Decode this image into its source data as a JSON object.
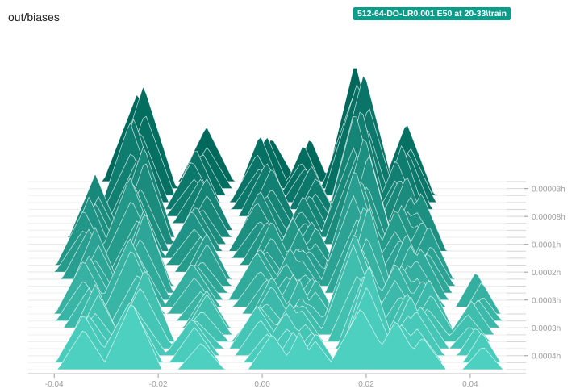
{
  "panel": {
    "title": "out/biases",
    "run_label": "512-64-DO-LR0.001 E50 at 20-33\\train"
  },
  "chart_data": {
    "type": "histogram-offset",
    "title": "out/biases",
    "xlim": [
      -0.045,
      0.047
    ],
    "x_ticks": [
      "-0.04",
      "-0.02",
      "0.00",
      "0.02",
      "0.04"
    ],
    "x_tick_values": [
      -0.04,
      -0.02,
      0.0,
      0.02,
      0.04
    ],
    "y_ticks": [
      "0.00003h",
      "0.00008h",
      "0.0001h",
      "0.0002h",
      "0.0003h",
      "0.0003h",
      "0.0004h"
    ],
    "y_tick_steps": [
      1,
      5,
      9,
      13,
      17,
      21,
      25
    ],
    "step_count": 28,
    "series": [
      {
        "peak_x": -0.024,
        "width": 0.006,
        "first_step": 0,
        "height": 1.0
      },
      {
        "peak_x": -0.012,
        "width": 0.005,
        "first_step": 0,
        "height": 0.55
      },
      {
        "peak_x": 0.0005,
        "width": 0.005,
        "first_step": 0,
        "height": 0.6
      },
      {
        "peak_x": 0.009,
        "width": 0.004,
        "first_step": 0,
        "height": 0.45
      },
      {
        "peak_x": 0.019,
        "width": 0.006,
        "first_step": 0,
        "height": 1.3
      },
      {
        "peak_x": 0.027,
        "width": 0.005,
        "first_step": 2,
        "height": 0.75
      },
      {
        "peak_x": -0.033,
        "width": 0.005,
        "first_step": 8,
        "height": 0.7
      },
      {
        "peak_x": 0.031,
        "width": 0.005,
        "first_step": 10,
        "height": 0.65
      },
      {
        "peak_x": 0.006,
        "width": 0.004,
        "first_step": 12,
        "height": 0.55
      },
      {
        "peak_x": 0.041,
        "width": 0.004,
        "first_step": 18,
        "height": 0.45
      }
    ],
    "colors": {
      "oldest": "#00695c",
      "newest": "#4dd0c0",
      "outline": "#ffffff",
      "grid": "#d6d6d6"
    }
  }
}
